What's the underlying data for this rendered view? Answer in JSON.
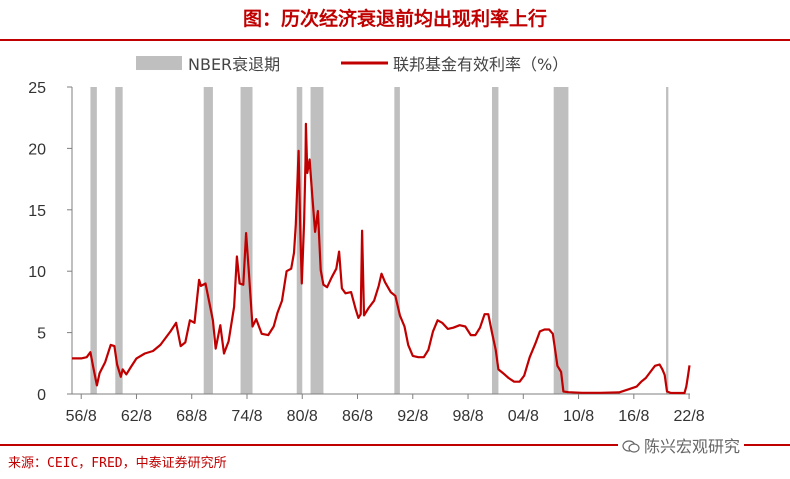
{
  "title": "图：历次经济衰退前均出现利率上行",
  "source": "来源：CEIC，FRED，中泰证券研究所",
  "watermark": "陈兴宏观研究",
  "colors": {
    "accent": "#c00000",
    "recession": "#bfbfbf",
    "axis": "#7f7f7f"
  },
  "chart_data": {
    "type": "line",
    "x_unit": "year",
    "xlim": [
      1955.6,
      2022.7
    ],
    "ylim": [
      0,
      25
    ],
    "yticks": [
      0,
      5,
      10,
      15,
      20,
      25
    ],
    "xticks": [
      {
        "label": "56/8",
        "x": 1956.6
      },
      {
        "label": "62/8",
        "x": 1962.6
      },
      {
        "label": "68/8",
        "x": 1968.6
      },
      {
        "label": "74/8",
        "x": 1974.6
      },
      {
        "label": "80/8",
        "x": 1980.6
      },
      {
        "label": "86/8",
        "x": 1986.6
      },
      {
        "label": "92/8",
        "x": 1992.6
      },
      {
        "label": "98/8",
        "x": 1998.6
      },
      {
        "label": "04/8",
        "x": 2004.6
      },
      {
        "label": "10/8",
        "x": 2010.6
      },
      {
        "label": "16/8",
        "x": 2016.6
      },
      {
        "label": "22/8",
        "x": 2022.6
      }
    ],
    "legend": [
      {
        "name": "NBER衰退期",
        "kind": "band"
      },
      {
        "name": "联邦基金有效利率（%）",
        "kind": "line"
      }
    ],
    "legend_position": "top-center",
    "recessions": [
      [
        1957.6,
        1958.3
      ],
      [
        1960.3,
        1961.1
      ],
      [
        1969.9,
        1970.9
      ],
      [
        1973.9,
        1975.2
      ],
      [
        1980.0,
        1980.6
      ],
      [
        1981.5,
        1982.9
      ],
      [
        1990.6,
        1991.2
      ],
      [
        2001.2,
        2001.9
      ],
      [
        2007.9,
        2009.5
      ],
      [
        2020.1,
        2020.35
      ]
    ],
    "series": [
      {
        "name": "联邦基金有效利率（%）",
        "color": "#c00000",
        "points": [
          [
            1955.6,
            2.9
          ],
          [
            1956.6,
            2.9
          ],
          [
            1957.2,
            3.0
          ],
          [
            1957.6,
            3.4
          ],
          [
            1957.9,
            2.2
          ],
          [
            1958.3,
            0.7
          ],
          [
            1958.6,
            1.7
          ],
          [
            1959.2,
            2.6
          ],
          [
            1959.8,
            4.0
          ],
          [
            1960.2,
            3.9
          ],
          [
            1960.5,
            2.4
          ],
          [
            1960.9,
            1.4
          ],
          [
            1961.1,
            2.0
          ],
          [
            1961.5,
            1.6
          ],
          [
            1962.0,
            2.2
          ],
          [
            1962.6,
            2.9
          ],
          [
            1963.5,
            3.3
          ],
          [
            1964.4,
            3.5
          ],
          [
            1965.2,
            4.0
          ],
          [
            1966.3,
            5.1
          ],
          [
            1966.9,
            5.8
          ],
          [
            1967.4,
            3.9
          ],
          [
            1967.9,
            4.2
          ],
          [
            1968.4,
            6.0
          ],
          [
            1968.9,
            5.8
          ],
          [
            1969.4,
            9.3
          ],
          [
            1969.6,
            8.8
          ],
          [
            1970.1,
            9.0
          ],
          [
            1970.5,
            7.5
          ],
          [
            1970.9,
            6.0
          ],
          [
            1971.2,
            3.7
          ],
          [
            1971.7,
            5.6
          ],
          [
            1972.1,
            3.3
          ],
          [
            1972.6,
            4.3
          ],
          [
            1973.2,
            7.1
          ],
          [
            1973.5,
            11.2
          ],
          [
            1973.8,
            9.0
          ],
          [
            1974.2,
            8.9
          ],
          [
            1974.5,
            13.1
          ],
          [
            1974.8,
            10.0
          ],
          [
            1975.2,
            5.5
          ],
          [
            1975.6,
            6.1
          ],
          [
            1976.2,
            4.9
          ],
          [
            1976.9,
            4.8
          ],
          [
            1977.5,
            5.5
          ],
          [
            1977.9,
            6.6
          ],
          [
            1978.4,
            7.6
          ],
          [
            1978.9,
            10.0
          ],
          [
            1979.4,
            10.2
          ],
          [
            1979.7,
            11.5
          ],
          [
            1979.9,
            13.8
          ],
          [
            1980.2,
            19.8
          ],
          [
            1980.4,
            13.0
          ],
          [
            1980.55,
            9.0
          ],
          [
            1980.8,
            14.0
          ],
          [
            1980.95,
            19.0
          ],
          [
            1981.0,
            22.0
          ],
          [
            1981.15,
            18.0
          ],
          [
            1981.4,
            19.1
          ],
          [
            1981.7,
            16.0
          ],
          [
            1982.0,
            13.2
          ],
          [
            1982.3,
            14.9
          ],
          [
            1982.6,
            10.1
          ],
          [
            1982.9,
            8.9
          ],
          [
            1983.3,
            8.7
          ],
          [
            1983.8,
            9.5
          ],
          [
            1984.3,
            10.2
          ],
          [
            1984.6,
            11.6
          ],
          [
            1984.9,
            8.6
          ],
          [
            1985.3,
            8.2
          ],
          [
            1985.9,
            8.3
          ],
          [
            1986.4,
            6.9
          ],
          [
            1986.7,
            6.2
          ],
          [
            1986.95,
            6.5
          ],
          [
            1987.1,
            13.3
          ],
          [
            1987.3,
            6.4
          ],
          [
            1987.8,
            7.0
          ],
          [
            1988.4,
            7.6
          ],
          [
            1988.9,
            8.8
          ],
          [
            1989.2,
            9.8
          ],
          [
            1989.6,
            9.1
          ],
          [
            1990.2,
            8.3
          ],
          [
            1990.7,
            8.0
          ],
          [
            1991.2,
            6.4
          ],
          [
            1991.7,
            5.5
          ],
          [
            1992.1,
            4.0
          ],
          [
            1992.6,
            3.1
          ],
          [
            1993.2,
            3.0
          ],
          [
            1993.8,
            3.0
          ],
          [
            1994.3,
            3.6
          ],
          [
            1994.8,
            5.1
          ],
          [
            1995.3,
            6.0
          ],
          [
            1995.8,
            5.8
          ],
          [
            1996.4,
            5.3
          ],
          [
            1997.0,
            5.4
          ],
          [
            1997.7,
            5.6
          ],
          [
            1998.3,
            5.5
          ],
          [
            1998.9,
            4.8
          ],
          [
            1999.4,
            4.8
          ],
          [
            1999.9,
            5.4
          ],
          [
            2000.4,
            6.5
          ],
          [
            2000.8,
            6.5
          ],
          [
            2001.2,
            5.0
          ],
          [
            2001.6,
            3.6
          ],
          [
            2001.9,
            2.0
          ],
          [
            2002.4,
            1.7
          ],
          [
            2003.0,
            1.3
          ],
          [
            2003.6,
            1.0
          ],
          [
            2004.2,
            1.0
          ],
          [
            2004.7,
            1.5
          ],
          [
            2005.3,
            3.0
          ],
          [
            2005.9,
            4.1
          ],
          [
            2006.4,
            5.1
          ],
          [
            2006.9,
            5.25
          ],
          [
            2007.4,
            5.25
          ],
          [
            2007.8,
            4.9
          ],
          [
            2008.0,
            3.9
          ],
          [
            2008.3,
            2.3
          ],
          [
            2008.7,
            1.8
          ],
          [
            2008.95,
            0.2
          ],
          [
            2009.5,
            0.15
          ],
          [
            2011.0,
            0.1
          ],
          [
            2013.0,
            0.1
          ],
          [
            2015.0,
            0.13
          ],
          [
            2015.95,
            0.36
          ],
          [
            2016.9,
            0.6
          ],
          [
            2017.4,
            1.0
          ],
          [
            2017.9,
            1.3
          ],
          [
            2018.4,
            1.8
          ],
          [
            2018.9,
            2.3
          ],
          [
            2019.4,
            2.4
          ],
          [
            2019.7,
            2.0
          ],
          [
            2019.95,
            1.55
          ],
          [
            2020.2,
            0.2
          ],
          [
            2020.6,
            0.09
          ],
          [
            2021.5,
            0.08
          ],
          [
            2022.1,
            0.08
          ],
          [
            2022.3,
            0.6
          ],
          [
            2022.5,
            1.6
          ],
          [
            2022.65,
            2.33
          ]
        ]
      }
    ]
  }
}
